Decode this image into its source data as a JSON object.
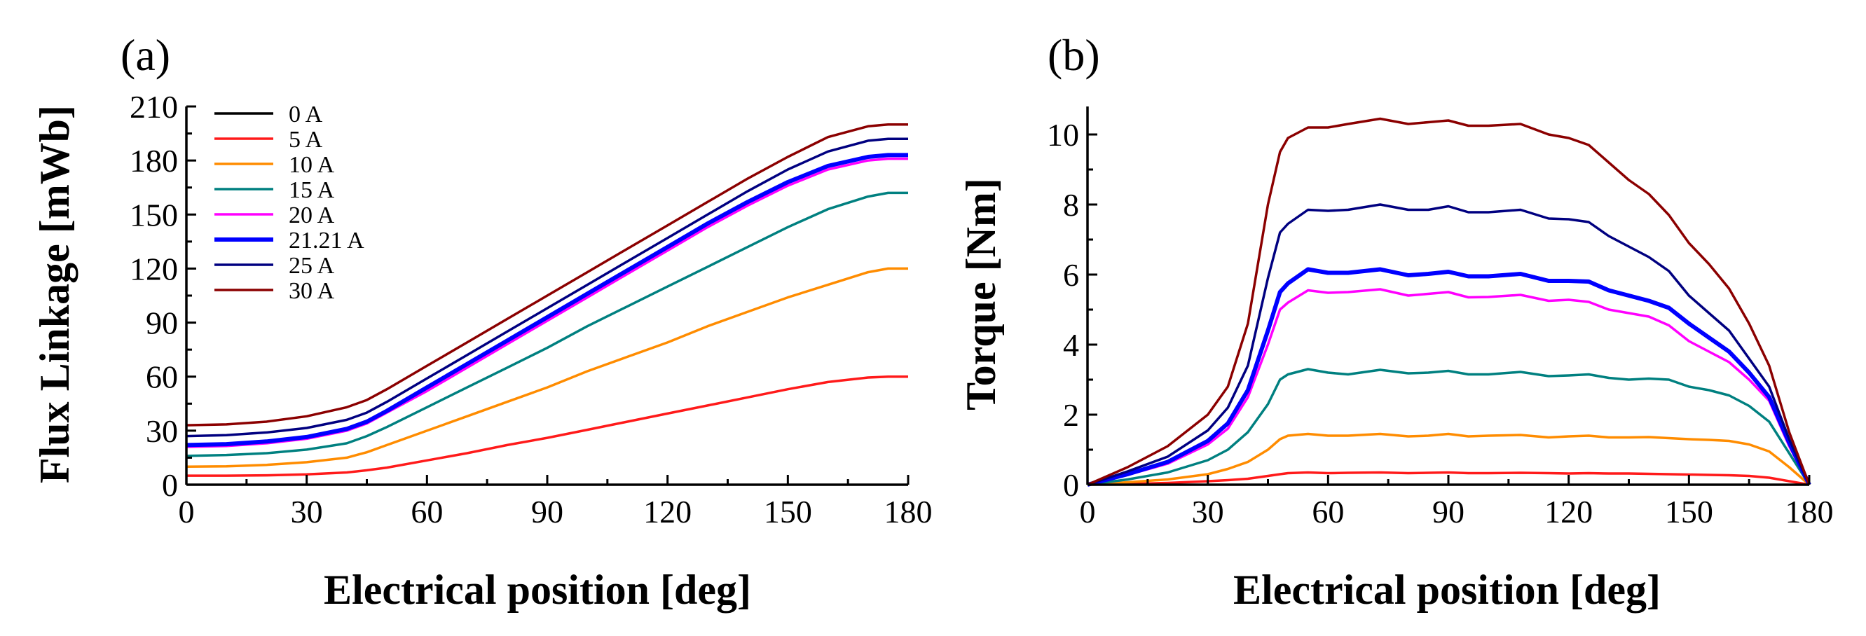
{
  "chart_data": [
    {
      "type": "line",
      "panel_label": "(a)",
      "xlabel": "Electrical position [deg]",
      "ylabel": "Flux Linkage [mWb]",
      "xlim": [
        0,
        180
      ],
      "ylim": [
        0,
        210
      ],
      "xticks": [
        "0",
        "30",
        "60",
        "90",
        "120",
        "150",
        "180"
      ],
      "yticks": [
        "0",
        "30",
        "60",
        "90",
        "120",
        "150",
        "180",
        "210"
      ],
      "legend": "top-left",
      "x": [
        0,
        10,
        20,
        30,
        40,
        45,
        50,
        60,
        70,
        80,
        90,
        100,
        110,
        120,
        130,
        140,
        150,
        160,
        170,
        175,
        180
      ],
      "series": [
        {
          "name": "0 A",
          "color": "#000000",
          "values": [
            0,
            0,
            0,
            0,
            0,
            0,
            0,
            0,
            0,
            0,
            0,
            0,
            0,
            0,
            0,
            0,
            0,
            0,
            0,
            0,
            0
          ]
        },
        {
          "name": "5 A",
          "color": "#ff1a1a",
          "values": [
            5,
            5,
            5.2,
            5.7,
            6.8,
            8,
            9.5,
            13.5,
            17.5,
            22,
            26,
            30.5,
            35,
            39.5,
            44,
            48.5,
            53,
            57,
            59.5,
            60,
            60
          ]
        },
        {
          "name": "10 A",
          "color": "#ff8c00",
          "values": [
            10,
            10.2,
            11,
            12.5,
            15,
            18,
            22,
            30,
            38,
            46,
            54,
            63,
            71,
            79,
            88,
            96,
            104,
            111,
            118,
            120,
            120
          ]
        },
        {
          "name": "15 A",
          "color": "#008080",
          "values": [
            16,
            16.5,
            17.5,
            19.5,
            23,
            27,
            32,
            43,
            54,
            65,
            76,
            88,
            99,
            110,
            121,
            132,
            143,
            153,
            160,
            162,
            162
          ]
        },
        {
          "name": "20 A",
          "color": "#ff00ff",
          "values": [
            21,
            21.5,
            23,
            25.5,
            30,
            34,
            40,
            52,
            65,
            78,
            91,
            104,
            117,
            130,
            143,
            155,
            166,
            175,
            180,
            181,
            181
          ]
        },
        {
          "name": "21.21 A",
          "color": "#0000ff",
          "values": [
            22,
            22.5,
            24,
            26.5,
            31,
            35,
            41,
            54,
            67,
            80,
            93,
            106,
            119,
            132,
            145,
            157,
            168,
            177,
            182,
            183,
            183
          ]
        },
        {
          "name": "25 A",
          "color": "#000080",
          "values": [
            27,
            27.5,
            29,
            31.5,
            36,
            40,
            46,
            59,
            72,
            85,
            98,
            111,
            124,
            137,
            150,
            163,
            175,
            185,
            191,
            192,
            192
          ]
        },
        {
          "name": "30 A",
          "color": "#8b0000",
          "values": [
            33,
            33.5,
            35,
            38,
            43,
            47,
            53,
            66,
            79,
            92,
            105,
            118,
            131,
            144,
            157,
            170,
            182,
            193,
            199,
            200,
            200
          ]
        }
      ]
    },
    {
      "type": "line",
      "panel_label": "(b)",
      "xlabel": "Electrical position [deg]",
      "ylabel": "Torque [Nm]",
      "xlim": [
        0,
        180
      ],
      "ylim": [
        0,
        10.8
      ],
      "xticks": [
        "0",
        "30",
        "60",
        "90",
        "120",
        "150",
        "180"
      ],
      "yticks": [
        "0",
        "2",
        "4",
        "6",
        "8",
        "10"
      ],
      "x": [
        0,
        10,
        20,
        30,
        35,
        40,
        45,
        48,
        50,
        55,
        60,
        65,
        73,
        80,
        85,
        90,
        95,
        100,
        108,
        115,
        120,
        125,
        130,
        135,
        140,
        145,
        150,
        155,
        160,
        165,
        170,
        175,
        180
      ],
      "series": [
        {
          "name": "5 A",
          "color": "#ff1a1a",
          "values": [
            0,
            0.02,
            0.05,
            0.1,
            0.13,
            0.17,
            0.25,
            0.3,
            0.33,
            0.35,
            0.33,
            0.34,
            0.35,
            0.33,
            0.34,
            0.35,
            0.33,
            0.33,
            0.34,
            0.33,
            0.32,
            0.33,
            0.32,
            0.32,
            0.31,
            0.3,
            0.29,
            0.28,
            0.27,
            0.25,
            0.2,
            0.1,
            0
          ]
        },
        {
          "name": "10 A",
          "color": "#ff8c00",
          "values": [
            0,
            0.07,
            0.15,
            0.3,
            0.45,
            0.65,
            1.0,
            1.3,
            1.4,
            1.45,
            1.4,
            1.4,
            1.45,
            1.38,
            1.4,
            1.45,
            1.38,
            1.4,
            1.42,
            1.35,
            1.38,
            1.4,
            1.35,
            1.35,
            1.36,
            1.33,
            1.3,
            1.28,
            1.25,
            1.15,
            0.95,
            0.5,
            0
          ]
        },
        {
          "name": "15 A",
          "color": "#008080",
          "values": [
            0,
            0.15,
            0.35,
            0.7,
            1.0,
            1.5,
            2.3,
            3.0,
            3.15,
            3.3,
            3.2,
            3.15,
            3.28,
            3.18,
            3.2,
            3.25,
            3.15,
            3.15,
            3.22,
            3.1,
            3.12,
            3.15,
            3.05,
            3.0,
            3.03,
            3.0,
            2.8,
            2.7,
            2.55,
            2.25,
            1.8,
            0.9,
            0
          ]
        },
        {
          "name": "20 A",
          "color": "#ff00ff",
          "values": [
            0,
            0.28,
            0.6,
            1.15,
            1.6,
            2.5,
            4.0,
            5.0,
            5.2,
            5.55,
            5.48,
            5.5,
            5.58,
            5.4,
            5.45,
            5.5,
            5.35,
            5.36,
            5.42,
            5.25,
            5.28,
            5.22,
            5.0,
            4.9,
            4.8,
            4.55,
            4.1,
            3.8,
            3.5,
            3.0,
            2.4,
            1.1,
            0
          ]
        },
        {
          "name": "21.21 A",
          "color": "#0000ff",
          "values": [
            0,
            0.3,
            0.65,
            1.25,
            1.75,
            2.7,
            4.4,
            5.5,
            5.75,
            6.15,
            6.05,
            6.05,
            6.15,
            5.98,
            6.02,
            6.08,
            5.95,
            5.95,
            6.02,
            5.82,
            5.82,
            5.8,
            5.55,
            5.4,
            5.25,
            5.05,
            4.6,
            4.2,
            3.8,
            3.2,
            2.5,
            1.2,
            0
          ]
        },
        {
          "name": "25 A",
          "color": "#000080",
          "values": [
            0,
            0.38,
            0.8,
            1.55,
            2.2,
            3.4,
            5.9,
            7.2,
            7.45,
            7.85,
            7.82,
            7.85,
            8.0,
            7.85,
            7.85,
            7.95,
            7.78,
            7.78,
            7.85,
            7.6,
            7.58,
            7.5,
            7.1,
            6.8,
            6.5,
            6.1,
            5.4,
            4.9,
            4.4,
            3.6,
            2.8,
            1.3,
            0
          ]
        },
        {
          "name": "30 A",
          "color": "#8b0000",
          "values": [
            0,
            0.5,
            1.1,
            2.0,
            2.8,
            4.6,
            8.0,
            9.5,
            9.9,
            10.2,
            10.2,
            10.3,
            10.45,
            10.3,
            10.35,
            10.4,
            10.25,
            10.25,
            10.3,
            10.0,
            9.9,
            9.7,
            9.2,
            8.7,
            8.3,
            7.7,
            6.9,
            6.3,
            5.6,
            4.6,
            3.4,
            1.5,
            0
          ]
        }
      ]
    }
  ]
}
